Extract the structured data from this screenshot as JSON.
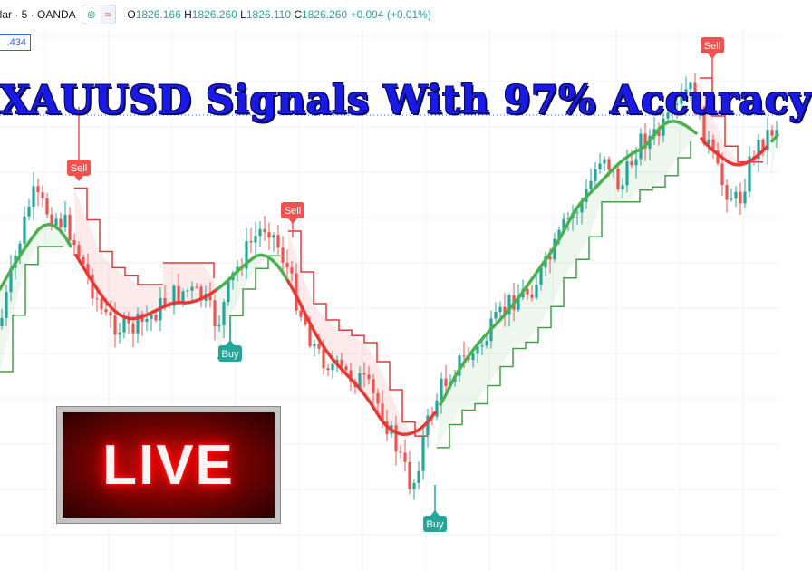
{
  "legend": {
    "symbol": "llar · 5 · OANDA",
    "btn_eye": "⊚",
    "btn_wave": "≈",
    "open_label": "O",
    "open_value": "1826.166",
    "high_label": "H",
    "high_value": "1826.260",
    "low_label": "L",
    "low_value": "1826.110",
    "close_label": "C",
    "close_value": "1826.260",
    "change": "+0.094 (+0.01%)"
  },
  "price_tag": ".434",
  "headline": "XAUUSD Signals With 97% Accuracy",
  "live_label": "LIVE",
  "signals": [
    {
      "label": "Sell",
      "type": "sell"
    },
    {
      "label": "Sell",
      "type": "sell"
    },
    {
      "label": "Buy",
      "type": "buy"
    },
    {
      "label": "Buy",
      "type": "buy"
    },
    {
      "label": "Sell",
      "type": "sell"
    }
  ],
  "colors": {
    "up": "#26a69a",
    "down": "#ef5350",
    "trend_up": "#4caf50",
    "trend_down": "#e53935",
    "headline": "#1a1ae6",
    "accent": "#2962ff"
  }
}
